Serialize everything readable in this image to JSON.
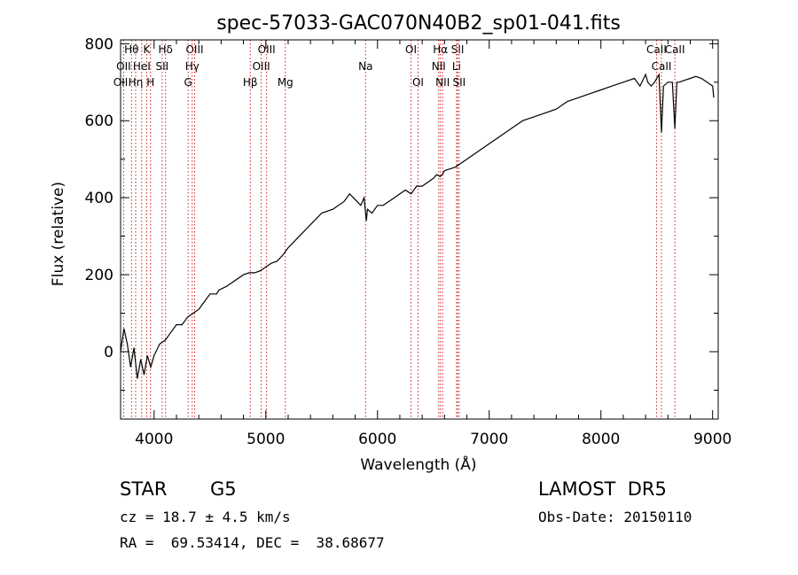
{
  "chart_data": {
    "type": "line",
    "title": "spec-57033-GAC070N40B2_sp01-041.fits",
    "xlabel": "Wavelength (Å)",
    "ylabel": "Flux (relative)",
    "xlim": [
      3700,
      9050
    ],
    "ylim": [
      -175,
      810
    ],
    "x_ticks": [
      4000,
      5000,
      6000,
      7000,
      8000,
      9000
    ],
    "y_ticks": [
      0,
      200,
      400,
      600,
      800
    ],
    "grid": false,
    "legend": "none",
    "line_color": "#000000",
    "marker_color": "#cc2222",
    "series": [
      {
        "x": [
          3700,
          3730,
          3760,
          3790,
          3820,
          3850,
          3880,
          3910,
          3940,
          3970,
          4000,
          4050,
          4100,
          4150,
          4200,
          4250,
          4300,
          4350,
          4400,
          4450,
          4500,
          4540,
          4560,
          4580,
          4650,
          4700,
          4800,
          4850,
          4900,
          4950,
          5000,
          5050,
          5100,
          5150,
          5200,
          5300,
          5400,
          5500,
          5600,
          5700,
          5750,
          5800,
          5850,
          5880,
          5900,
          5910,
          5950,
          6000,
          6050,
          6100,
          6150,
          6200,
          6250,
          6300,
          6350,
          6400,
          6450,
          6500,
          6530,
          6560,
          6580,
          6600,
          6650,
          6700,
          6750,
          6800,
          6900,
          7000,
          7100,
          7200,
          7300,
          7400,
          7500,
          7600,
          7700,
          7800,
          7900,
          8000,
          8100,
          8200,
          8300,
          8350,
          8400,
          8420,
          8450,
          8480,
          8500,
          8520,
          8542,
          8560,
          8600,
          8640,
          8662,
          8680,
          8700,
          8750,
          8800,
          8850,
          8900,
          8950,
          9000,
          9010
        ],
        "y": [
          0,
          60,
          20,
          -40,
          10,
          -70,
          -20,
          -60,
          -10,
          -40,
          -10,
          20,
          30,
          50,
          70,
          70,
          90,
          100,
          110,
          130,
          150,
          150,
          150,
          160,
          170,
          180,
          200,
          205,
          205,
          210,
          220,
          230,
          235,
          250,
          270,
          300,
          330,
          360,
          370,
          390,
          410,
          395,
          380,
          400,
          340,
          370,
          360,
          380,
          380,
          390,
          400,
          410,
          420,
          410,
          430,
          430,
          440,
          450,
          460,
          455,
          460,
          470,
          475,
          480,
          490,
          500,
          520,
          540,
          560,
          580,
          600,
          610,
          620,
          630,
          650,
          660,
          670,
          680,
          690,
          700,
          710,
          690,
          720,
          700,
          690,
          700,
          710,
          720,
          570,
          690,
          700,
          700,
          580,
          700,
          700,
          705,
          710,
          715,
          710,
          700,
          690,
          660
        ]
      }
    ],
    "lines": [
      {
        "label": "Hθ",
        "x": 3798
      },
      {
        "label": "K",
        "x": 3934
      },
      {
        "label": "Hδ",
        "x": 4102
      },
      {
        "label": "OIII",
        "x": 4363
      },
      {
        "label": "OIII",
        "x": 5007
      },
      {
        "label": "OI",
        "x": 6300
      },
      {
        "label": "Hα",
        "x": 6563
      },
      {
        "label": "SII",
        "x": 6717
      },
      {
        "label": "CaII",
        "x": 8662
      },
      {
        "label": "OII",
        "x": 3727
      },
      {
        "label": "HeI",
        "x": 3889
      },
      {
        "label": "SII",
        "x": 4072
      },
      {
        "label": "Hγ",
        "x": 4341
      },
      {
        "label": "OIII",
        "x": 4959
      },
      {
        "label": "Na",
        "x": 5893
      },
      {
        "label": "NII",
        "x": 6548
      },
      {
        "label": "Li",
        "x": 6708
      },
      {
        "label": "CaII",
        "x": 8542
      },
      {
        "label": "OII",
        "x": 3700
      },
      {
        "label": "Hη",
        "x": 3835
      },
      {
        "label": "H",
        "x": 3968
      },
      {
        "label": "G",
        "x": 4305
      },
      {
        "label": "Hβ",
        "x": 4861
      },
      {
        "label": "Mg",
        "x": 5175
      },
      {
        "label": "OI",
        "x": 6363
      },
      {
        "label": "NII",
        "x": 6583
      },
      {
        "label": "SII",
        "x": 6731
      },
      {
        "label": "CaII",
        "x": 8498
      }
    ]
  },
  "info": {
    "class_label": "STAR",
    "subclass": "G5",
    "survey": "LAMOST  DR5",
    "cz": "cz = 18.7 ± 4.5 km/s",
    "obs_date": "Obs-Date: 20150110",
    "coords": "RA =  69.53414, DEC =  38.68677"
  }
}
